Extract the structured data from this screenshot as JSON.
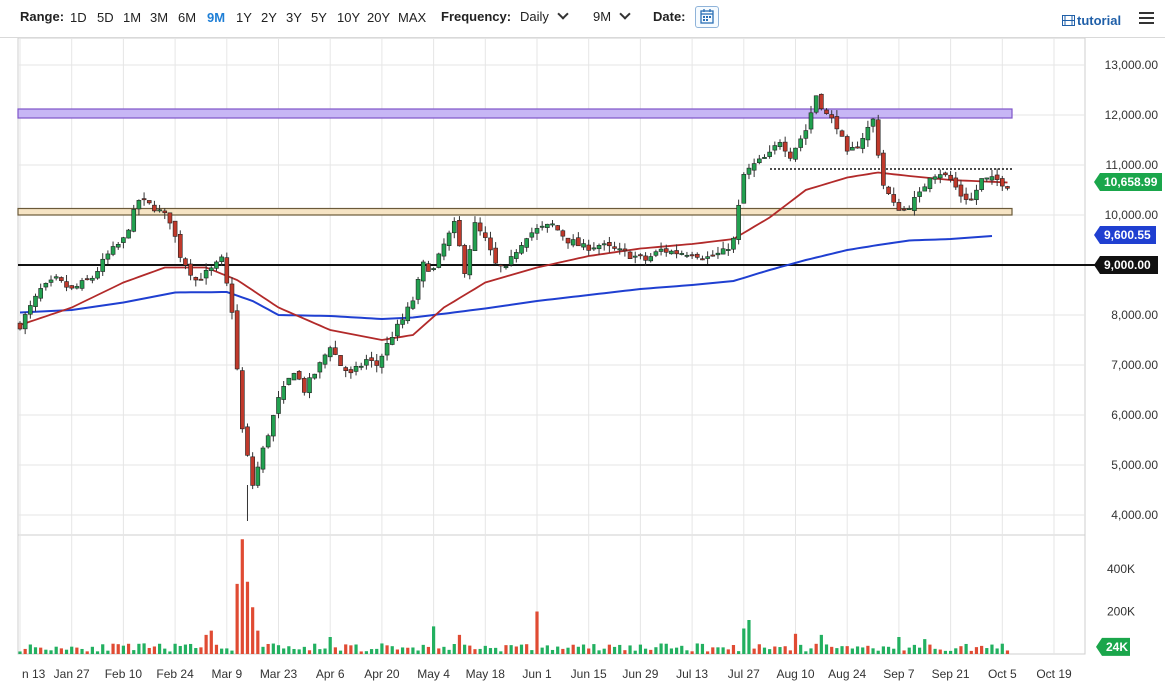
{
  "toolbar": {
    "range_label": "Range:",
    "ranges": [
      "1D",
      "5D",
      "1M",
      "3M",
      "6M",
      "9M",
      "1Y",
      "2Y",
      "3Y",
      "5Y",
      "10Y",
      "20Y",
      "MAX"
    ],
    "active_range": "9M",
    "frequency_label": "Frequency:",
    "frequency_value": "Daily",
    "period_value": "9M",
    "date_label": "Date:",
    "tutorial_label": "tutorial",
    "calendar_icon": "calendar-icon",
    "menu_icon": "hamburger-menu-icon"
  },
  "chart_data": {
    "type": "candlestick",
    "title": "",
    "ylim": [
      3500,
      13300
    ],
    "y_ticks": [
      "4,000.00",
      "5,000.00",
      "6,000.00",
      "7,000.00",
      "8,000.00",
      "9,000.00",
      "10,000.00",
      "11,000.00",
      "12,000.00",
      "13,000.00"
    ],
    "y_tick_values": [
      4000,
      5000,
      6000,
      7000,
      8000,
      9000,
      10000,
      11000,
      12000,
      13000
    ],
    "x_ticks": [
      "n 13",
      "Jan 27",
      "Feb 10",
      "Feb 24",
      "Mar 9",
      "Mar 23",
      "Apr 6",
      "Apr 20",
      "May 4",
      "May 18",
      "Jun 1",
      "Jun 15",
      "Jun 29",
      "Jul 13",
      "Jul 27",
      "Aug 10",
      "Aug 24",
      "Sep 7",
      "Sep 21",
      "Oct 5",
      "Oct 19"
    ],
    "x_tick_index": [
      0,
      10,
      20,
      30,
      40,
      50,
      60,
      70,
      80,
      90,
      100,
      110,
      120,
      130,
      140,
      150,
      160,
      170,
      180,
      190,
      200
    ],
    "price_anchors": [
      [
        0,
        7800
      ],
      [
        4,
        8500
      ],
      [
        7,
        8700
      ],
      [
        10,
        8500
      ],
      [
        14,
        8750
      ],
      [
        17,
        9200
      ],
      [
        20,
        9500
      ],
      [
        23,
        10300
      ],
      [
        26,
        10150
      ],
      [
        29,
        9900
      ],
      [
        31,
        9200
      ],
      [
        34,
        8700
      ],
      [
        37,
        8900
      ],
      [
        39,
        9100
      ],
      [
        41,
        8100
      ],
      [
        43,
        5700
      ],
      [
        45,
        4600
      ],
      [
        47,
        5300
      ],
      [
        50,
        6300
      ],
      [
        53,
        6900
      ],
      [
        55,
        6500
      ],
      [
        58,
        7000
      ],
      [
        60,
        7400
      ],
      [
        62,
        7000
      ],
      [
        64,
        6800
      ],
      [
        67,
        7100
      ],
      [
        69,
        7000
      ],
      [
        72,
        7600
      ],
      [
        74,
        7900
      ],
      [
        76,
        8300
      ],
      [
        78,
        9000
      ],
      [
        80,
        8900
      ],
      [
        82,
        9400
      ],
      [
        84,
        9800
      ],
      [
        86,
        8900
      ],
      [
        88,
        9800
      ],
      [
        90,
        9500
      ],
      [
        92,
        9000
      ],
      [
        94,
        8900
      ],
      [
        96,
        9300
      ],
      [
        98,
        9600
      ],
      [
        100,
        9700
      ],
      [
        103,
        9800
      ],
      [
        106,
        9500
      ],
      [
        109,
        9350
      ],
      [
        112,
        9400
      ],
      [
        115,
        9300
      ],
      [
        118,
        9200
      ],
      [
        121,
        9100
      ],
      [
        124,
        9300
      ],
      [
        127,
        9250
      ],
      [
        130,
        9250
      ],
      [
        133,
        9150
      ],
      [
        136,
        9250
      ],
      [
        138,
        9500
      ],
      [
        140,
        10800
      ],
      [
        142,
        11000
      ],
      [
        145,
        11200
      ],
      [
        147,
        11500
      ],
      [
        149,
        11200
      ],
      [
        152,
        11700
      ],
      [
        154,
        12400
      ],
      [
        156,
        12000
      ],
      [
        158,
        11800
      ],
      [
        160,
        11200
      ],
      [
        162,
        11400
      ],
      [
        165,
        11900
      ],
      [
        167,
        10600
      ],
      [
        169,
        10200
      ],
      [
        171,
        10100
      ],
      [
        174,
        10400
      ],
      [
        176,
        10800
      ],
      [
        178,
        10850
      ],
      [
        180,
        10700
      ],
      [
        182,
        10400
      ],
      [
        184,
        10300
      ],
      [
        186,
        10700
      ],
      [
        189,
        10700
      ],
      [
        191,
        10600
      ]
    ],
    "candle_count": 192,
    "sma50_anchors": [
      [
        0,
        7800
      ],
      [
        10,
        8150
      ],
      [
        20,
        8650
      ],
      [
        28,
        8950
      ],
      [
        36,
        8950
      ],
      [
        42,
        8700
      ],
      [
        50,
        8150
      ],
      [
        60,
        7700
      ],
      [
        70,
        7500
      ],
      [
        76,
        7600
      ],
      [
        82,
        8150
      ],
      [
        90,
        8650
      ],
      [
        100,
        8950
      ],
      [
        110,
        9180
      ],
      [
        120,
        9330
      ],
      [
        130,
        9420
      ],
      [
        138,
        9520
      ],
      [
        145,
        9950
      ],
      [
        152,
        10500
      ],
      [
        160,
        10750
      ],
      [
        166,
        10850
      ],
      [
        172,
        10780
      ],
      [
        180,
        10700
      ],
      [
        191,
        10650
      ]
    ],
    "sma200_anchors": [
      [
        0,
        8050
      ],
      [
        10,
        8100
      ],
      [
        20,
        8250
      ],
      [
        30,
        8450
      ],
      [
        40,
        8460
      ],
      [
        45,
        8280
      ],
      [
        50,
        8000
      ],
      [
        60,
        7980
      ],
      [
        70,
        7920
      ],
      [
        76,
        7950
      ],
      [
        80,
        8000
      ],
      [
        90,
        8130
      ],
      [
        100,
        8280
      ],
      [
        110,
        8400
      ],
      [
        120,
        8520
      ],
      [
        130,
        8600
      ],
      [
        138,
        8680
      ],
      [
        145,
        8900
      ],
      [
        152,
        9100
      ],
      [
        160,
        9300
      ],
      [
        166,
        9400
      ],
      [
        172,
        9490
      ],
      [
        180,
        9520
      ],
      [
        188,
        9580
      ],
      [
        191,
        9600
      ]
    ],
    "zones": [
      {
        "name": "resistance-zone",
        "from": 11940,
        "to": 12120,
        "color": "#c7b6f5"
      },
      {
        "name": "support-zone",
        "from": 10000,
        "to": 10130,
        "color": "#f6e4c4"
      }
    ],
    "dotted_level": 11000,
    "horizontal_line": 9000,
    "last_price": "10,658.99",
    "last_price_value": 10658.99,
    "sma200_label": "9,600.55",
    "sma200_value": 9600.55,
    "line_label": "9,000.00",
    "line_value": 9000,
    "volume": {
      "ymax": 560,
      "ticks": [
        "200K",
        "400K"
      ],
      "tick_values": [
        200,
        400
      ],
      "last_label": "24K",
      "last_value": 24,
      "spikes": [
        [
          36,
          90
        ],
        [
          37,
          110
        ],
        [
          42,
          330
        ],
        [
          43,
          540
        ],
        [
          44,
          340
        ],
        [
          45,
          220
        ],
        [
          46,
          110
        ],
        [
          60,
          80
        ],
        [
          80,
          130
        ],
        [
          85,
          90
        ],
        [
          100,
          200
        ],
        [
          140,
          120
        ],
        [
          141,
          160
        ],
        [
          150,
          95
        ],
        [
          155,
          90
        ],
        [
          170,
          80
        ],
        [
          175,
          70
        ]
      ]
    },
    "colors": {
      "up": "#22a150",
      "down": "#c0392b",
      "sma50": "#b22a2a",
      "sma200": "#1f3fd1",
      "price_label": "#1aa64b",
      "sma200_label": "#1f3fd1",
      "line_label": "#111111"
    }
  }
}
